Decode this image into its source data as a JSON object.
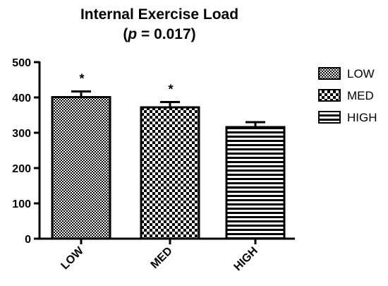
{
  "chart_data": {
    "type": "bar",
    "title": "Internal Exercise Load",
    "subtitle_p": "p",
    "subtitle_rest": " = 0.017)",
    "subtitle_open": "(",
    "xlabel": "",
    "ylabel": "",
    "ylim": [
      0,
      500
    ],
    "yticks": [
      "0",
      "100",
      "200",
      "300",
      "400",
      "500"
    ],
    "categories": [
      "LOW",
      "MED",
      "HIGH"
    ],
    "values": [
      401,
      372,
      316
    ],
    "errors": [
      16,
      15,
      14
    ],
    "significance": [
      "*",
      "*",
      ""
    ],
    "legend": {
      "placement": "right",
      "entries": [
        "LOW",
        "MED",
        "HIGH"
      ]
    },
    "grid": false
  }
}
